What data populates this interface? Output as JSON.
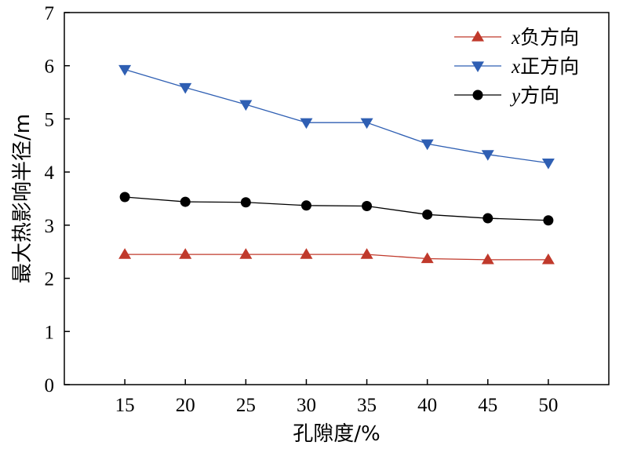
{
  "chart_data": {
    "type": "line",
    "title": "",
    "xlabel": "孔隙度/%",
    "ylabel": "最大热影响半径/m",
    "categories": [
      "15",
      "20",
      "25",
      "30",
      "35",
      "40",
      "45",
      "50"
    ],
    "x": [
      15,
      20,
      25,
      30,
      35,
      40,
      45,
      50
    ],
    "xlim": [
      10,
      55
    ],
    "ylim": [
      0,
      7
    ],
    "yticks": [
      0,
      1,
      2,
      3,
      4,
      5,
      6,
      7
    ],
    "ytick_labels": [
      "0",
      "1",
      "2",
      "3",
      "4",
      "5",
      "6",
      "7"
    ],
    "grid": false,
    "legend_position": "top-right",
    "series": [
      {
        "name": "x负方向",
        "var": "x",
        "suffix": "负方向",
        "marker": "triangle-up",
        "color": "#c0392b",
        "marker_color": "#c0392b",
        "values": [
          2.45,
          2.45,
          2.45,
          2.45,
          2.45,
          2.37,
          2.35,
          2.35
        ]
      },
      {
        "name": "x正方向",
        "var": "x",
        "suffix": "正方向",
        "marker": "triangle-down",
        "color": "#2f5fb3",
        "marker_color": "#2f5fb3",
        "values": [
          5.93,
          5.59,
          5.27,
          4.93,
          4.93,
          4.53,
          4.33,
          4.17
        ]
      },
      {
        "name": "y方向",
        "var": "y",
        "suffix": "方向",
        "marker": "circle",
        "color": "#000000",
        "marker_color": "#000000",
        "values": [
          3.53,
          3.44,
          3.43,
          3.37,
          3.36,
          3.2,
          3.13,
          3.09
        ]
      }
    ]
  }
}
